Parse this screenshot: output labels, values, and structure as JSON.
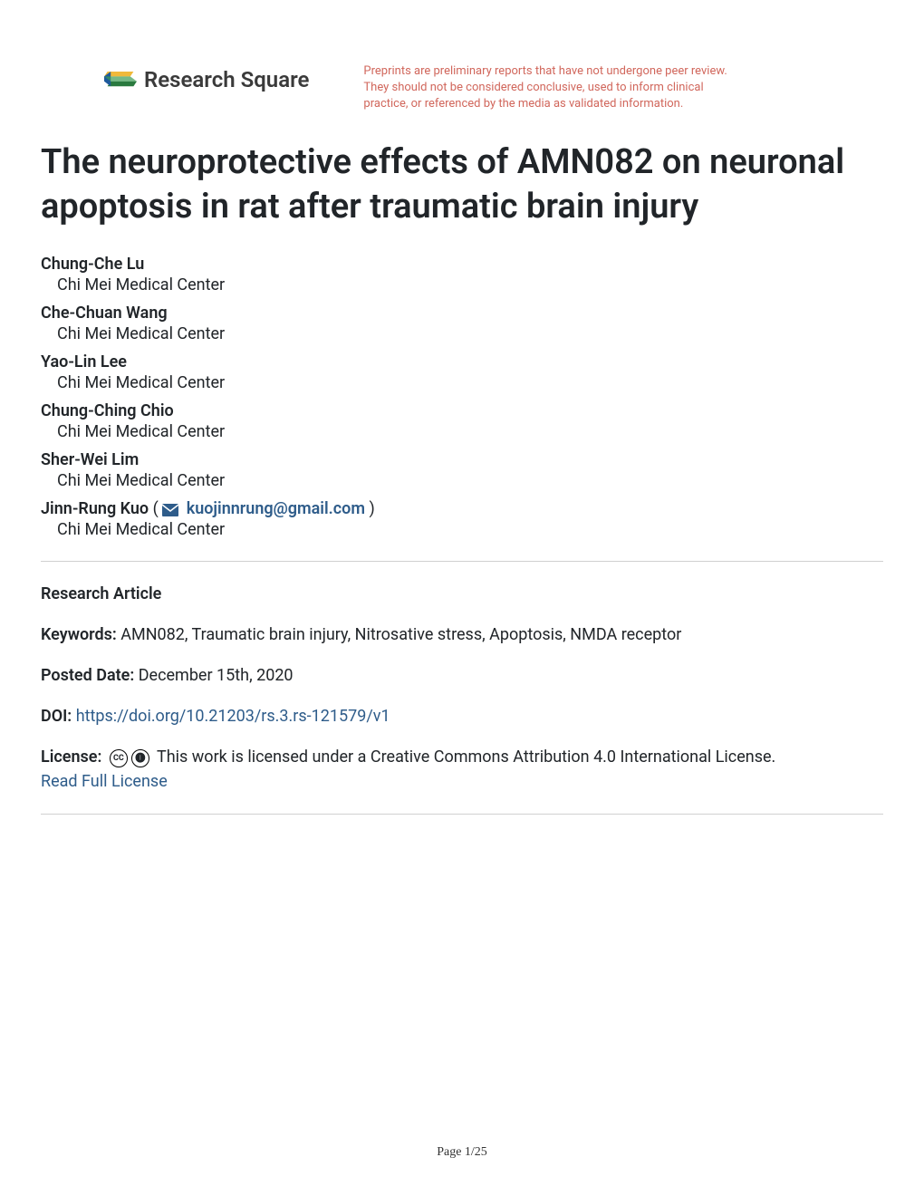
{
  "header": {
    "logo_text": "Research Square",
    "disclaimer": "Preprints are preliminary reports that have not undergone peer review. They should not be considered conclusive, used to inform clinical practice, or referenced by the media as validated information.",
    "disclaimer_color": "#d1675c"
  },
  "title": "The neuroprotective effects of AMN082 on neuronal apoptosis in rat after traumatic brain injury",
  "authors": [
    {
      "name": "Chung-Che Lu",
      "affiliation": "Chi Mei Medical Center",
      "corresponding": false
    },
    {
      "name": "Che-Chuan Wang",
      "affiliation": "Chi Mei Medical Center",
      "corresponding": false
    },
    {
      "name": "Yao-Lin Lee",
      "affiliation": "Chi Mei Medical Center",
      "corresponding": false
    },
    {
      "name": "Chung-Ching Chio",
      "affiliation": "Chi Mei Medical Center",
      "corresponding": false
    },
    {
      "name": "Sher-Wei Lim",
      "affiliation": "Chi Mei Medical Center",
      "corresponding": false
    },
    {
      "name": "Jinn-Rung Kuo",
      "affiliation": "Chi Mei Medical Center",
      "corresponding": true,
      "email": "kuojinnrung@gmail.com"
    }
  ],
  "meta": {
    "article_type": "Research Article",
    "keywords_label": "Keywords:",
    "keywords": "AMN082, Traumatic brain injury, Nitrosative stress, Apoptosis, NMDA receptor",
    "posted_date_label": "Posted Date:",
    "posted_date": "December 15th, 2020",
    "doi_label": "DOI:",
    "doi_url": "https://doi.org/10.21203/rs.3.rs-121579/v1",
    "license_label": "License:",
    "license_text": "This work is licensed under a Creative Commons Attribution 4.0 International License.",
    "read_license": "Read Full License"
  },
  "footer": {
    "page_number": "Page 1/25"
  },
  "colors": {
    "link_color": "#2e5c8a",
    "text_color": "#212529",
    "divider_color": "#d0d0d0",
    "background": "#ffffff"
  },
  "logo_colors": {
    "top_bar": "#2a7a3f",
    "bottom_bar": "#f0b93a",
    "left_accent": "#1e5a9c",
    "diagonal": "#3a9b52"
  }
}
